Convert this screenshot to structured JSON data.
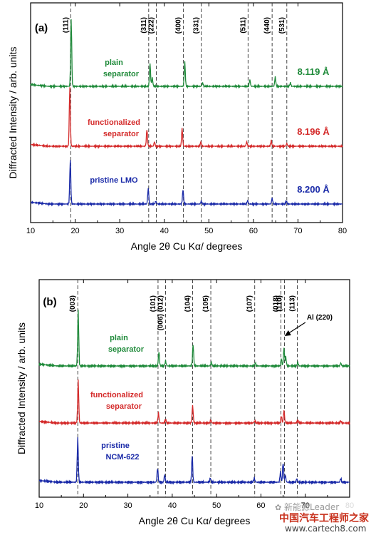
{
  "chart_data": [
    {
      "type": "line",
      "panel_label": "(a)",
      "xlabel": "Angle 2θ Cu Kα/ degrees",
      "ylabel": "Diffracted Intensity / arb. units",
      "xlim": [
        10,
        80
      ],
      "xticks": [
        10,
        20,
        30,
        40,
        50,
        60,
        70,
        80
      ],
      "reflections": [
        {
          "label": "(111)",
          "x": 19.0
        },
        {
          "label": "(311)",
          "x": 36.5
        },
        {
          "label": "(222)",
          "x": 38.2
        },
        {
          "label": "(400)",
          "x": 44.3
        },
        {
          "label": "(331)",
          "x": 48.3
        },
        {
          "label": "(511)",
          "x": 58.8
        },
        {
          "label": "(440)",
          "x": 64.2
        },
        {
          "label": "(531)",
          "x": 67.5
        }
      ],
      "series": [
        {
          "name": "plain separator",
          "label_lines": [
            "plain",
            "separator"
          ],
          "lattice": "8.119 Å",
          "color": "#1f8a3a",
          "peaks": [
            [
              19.1,
              95
            ],
            [
              36.8,
              32
            ],
            [
              37.3,
              12
            ],
            [
              44.6,
              34
            ],
            [
              48.6,
              5
            ],
            [
              59.2,
              9
            ],
            [
              64.9,
              13
            ],
            [
              68.3,
              5
            ]
          ]
        },
        {
          "name": "functionalized separator",
          "label_lines": [
            "functionalized",
            "separator"
          ],
          "lattice": "8.196 Å",
          "color": "#d42a2a",
          "peaks": [
            [
              18.8,
              82
            ],
            [
              36.1,
              24
            ],
            [
              37.8,
              6
            ],
            [
              44.0,
              25
            ],
            [
              48.2,
              6
            ],
            [
              58.5,
              6
            ],
            [
              64.0,
              8
            ],
            [
              67.5,
              4
            ]
          ]
        },
        {
          "name": "pristine LMO",
          "label_lines": [
            "pristine LMO"
          ],
          "lattice": "8.200 Å",
          "color": "#1a2aa8",
          "peaks": [
            [
              18.9,
              62
            ],
            [
              36.4,
              22
            ],
            [
              38.1,
              4
            ],
            [
              44.2,
              20
            ],
            [
              48.3,
              4
            ],
            [
              58.7,
              5
            ],
            [
              64.2,
              8
            ],
            [
              67.4,
              4
            ]
          ]
        }
      ]
    },
    {
      "type": "line",
      "panel_label": "(b)",
      "xlabel": "Angle 2θ Cu Kα/ degrees",
      "ylabel": "Diffracted Intensity / arb. units",
      "xlim": [
        10,
        80
      ],
      "xticks": [
        10,
        20,
        30,
        40,
        50,
        60,
        70,
        80
      ],
      "reflections": [
        {
          "label": "(003)",
          "x": 18.7
        },
        {
          "label": "(101)",
          "x": 36.8
        },
        {
          "label": "(006) (012)",
          "x": 38.5
        },
        {
          "label": "(104)",
          "x": 44.6
        },
        {
          "label": "(105)",
          "x": 48.7
        },
        {
          "label": "(107)",
          "x": 58.6
        },
        {
          "label": "(018)",
          "x": 64.5
        },
        {
          "label": "(110)",
          "x": 65.3
        },
        {
          "label": "(113)",
          "x": 68.2
        }
      ],
      "annotations": [
        {
          "text": "Al (220)",
          "x": 65.2
        }
      ],
      "series": [
        {
          "name": "plain separator",
          "label_lines": [
            "plain",
            "separator"
          ],
          "color": "#1f8a3a",
          "peaks": [
            [
              18.8,
              78
            ],
            [
              37.0,
              20
            ],
            [
              38.5,
              7
            ],
            [
              44.7,
              30
            ],
            [
              48.8,
              5
            ],
            [
              58.7,
              4
            ],
            [
              64.6,
              10
            ],
            [
              65.2,
              25
            ],
            [
              65.6,
              12
            ],
            [
              68.3,
              5
            ],
            [
              78.0,
              4
            ]
          ]
        },
        {
          "name": "functionalized separator",
          "label_lines": [
            "functionalized",
            "separator"
          ],
          "color": "#d42a2a",
          "peaks": [
            [
              18.8,
              60
            ],
            [
              36.9,
              14
            ],
            [
              38.5,
              5
            ],
            [
              44.6,
              25
            ],
            [
              48.7,
              4
            ],
            [
              58.6,
              3
            ],
            [
              64.6,
              10
            ],
            [
              65.2,
              18
            ],
            [
              68.3,
              4
            ],
            [
              78.0,
              3
            ]
          ]
        },
        {
          "name": "pristine NCM-622",
          "label_lines": [
            "pristine",
            "NCM-622"
          ],
          "color": "#1a2aa8",
          "peaks": [
            [
              18.7,
              62
            ],
            [
              36.7,
              20
            ],
            [
              38.3,
              10
            ],
            [
              44.5,
              38
            ],
            [
              48.6,
              6
            ],
            [
              58.5,
              6
            ],
            [
              64.4,
              14
            ],
            [
              65.0,
              28
            ],
            [
              65.5,
              10
            ],
            [
              68.1,
              5
            ],
            [
              78.0,
              5
            ]
          ]
        }
      ]
    }
  ],
  "watermark": {
    "brand_cn": "中国汽车工程师之家",
    "handle": "新能源Leader",
    "url": "www.cartech8.com"
  }
}
